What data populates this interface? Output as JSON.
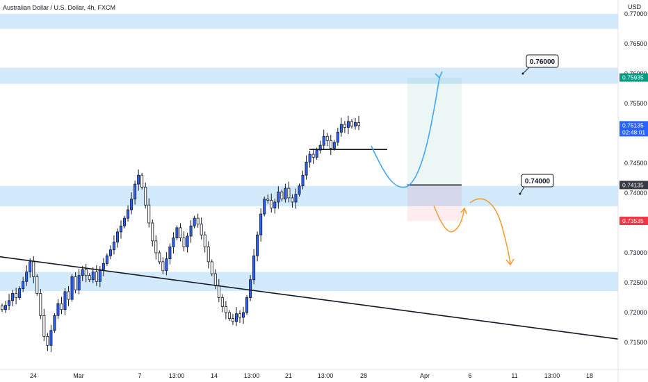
{
  "chart_data": {
    "type": "candlestick",
    "title": "Australian Dollar / U.S. Dollar, 4h, FXCM",
    "currency": "USD",
    "y_ticks": [
      0.715,
      0.72,
      0.725,
      0.73,
      0.735,
      0.74,
      0.745,
      0.75,
      0.755,
      0.76,
      0.765,
      0.77
    ],
    "x_ticks": [
      "24",
      "Mar",
      "7",
      "13:00",
      "14",
      "13:00",
      "21",
      "13:00",
      "28",
      "Apr",
      "6",
      "11",
      "13:00",
      "18"
    ],
    "price_tags": [
      {
        "label": "0.75935",
        "value": 0.75935,
        "color": "#089981"
      },
      {
        "label": "0.75135",
        "value": 0.75135,
        "color": "#2962ff",
        "countdown": "02:48:01"
      },
      {
        "label": "0.74135",
        "value": 0.74135,
        "color": "#363a45"
      },
      {
        "label": "0.73535",
        "value": 0.73535,
        "color": "#f23645"
      }
    ],
    "annotations": [
      {
        "label": "0.76000",
        "value": 0.76
      },
      {
        "label": "0.74000",
        "value": 0.74
      }
    ],
    "zones": [
      {
        "from": 0.7675,
        "to": 0.77,
        "color": "#bbdefb"
      },
      {
        "from": 0.7583,
        "to": 0.761,
        "color": "#bbdefb"
      },
      {
        "from": 0.7378,
        "to": 0.7412,
        "color": "#bbdefb"
      },
      {
        "from": 0.7236,
        "to": 0.7268,
        "color": "#bbdefb"
      }
    ],
    "position": {
      "entry": 0.74135,
      "target": 0.75935,
      "stop": 0.73535
    },
    "resistance_level": 0.7473,
    "trendline": [
      {
        "x": "24",
        "y": 0.7286
      },
      {
        "x": "18",
        "y": 0.7162
      }
    ],
    "closes": [
      0.7205,
      0.7212,
      0.722,
      0.7232,
      0.7225,
      0.724,
      0.7252,
      0.7268,
      0.7285,
      0.726,
      0.7232,
      0.7195,
      0.716,
      0.7145,
      0.717,
      0.7195,
      0.7215,
      0.7205,
      0.7235,
      0.7222,
      0.726,
      0.7238,
      0.7262,
      0.7272,
      0.7262,
      0.7255,
      0.7268,
      0.7252,
      0.7272,
      0.7282,
      0.7295,
      0.7305,
      0.7318,
      0.7335,
      0.7345,
      0.7358,
      0.7372,
      0.739,
      0.7415,
      0.743,
      0.741,
      0.738,
      0.735,
      0.732,
      0.73,
      0.7285,
      0.727,
      0.729,
      0.731,
      0.7325,
      0.7342,
      0.7325,
      0.731,
      0.7328,
      0.7345,
      0.7358,
      0.7348,
      0.733,
      0.731,
      0.7285,
      0.7265,
      0.7245,
      0.7225,
      0.721,
      0.72,
      0.719,
      0.7185,
      0.7198,
      0.7192,
      0.72,
      0.7225,
      0.7255,
      0.7295,
      0.733,
      0.7365,
      0.739,
      0.7388,
      0.7375,
      0.7385,
      0.7402,
      0.739,
      0.7408,
      0.7392,
      0.7385,
      0.7398,
      0.7412,
      0.743,
      0.7452,
      0.7465,
      0.746,
      0.7472,
      0.748,
      0.7495,
      0.7488,
      0.7475,
      0.7485,
      0.7502,
      0.7515,
      0.751,
      0.752,
      0.7512,
      0.7518,
      0.7513
    ]
  }
}
